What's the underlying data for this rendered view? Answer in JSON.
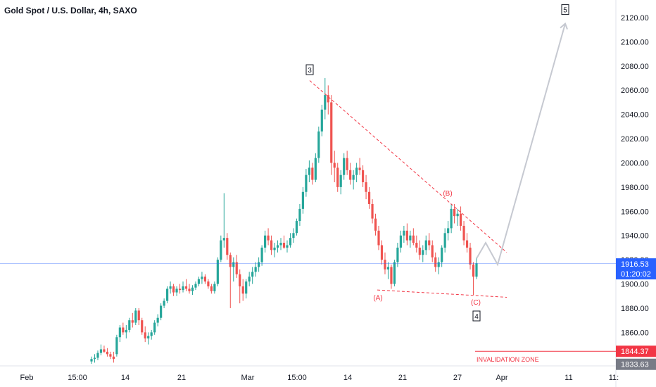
{
  "title": "Gold Spot / U.S. Dollar, 4h, SAXO",
  "price_label": {
    "price": "1916.53",
    "countdown": "01:20:02",
    "color": "#2962ff"
  },
  "invalidation": {
    "label": "INVALIDATION ZONE",
    "price": "1844.37",
    "color": "#f23645"
  },
  "low_marker": "1833.63",
  "colors": {
    "up": "#26a69a",
    "down": "#ef5350",
    "trend": "#f23645",
    "projection": "#c6c9d1",
    "price_line": "#2962ff"
  },
  "chart_data": {
    "type": "candlestick",
    "title": "Gold Spot / U.S. Dollar, 4h, SAXO",
    "ylim": [
      1826,
      2132
    ],
    "y_ticks": [
      1860,
      1880,
      1900,
      1920,
      1940,
      1960,
      1980,
      2000,
      2020,
      2040,
      2060,
      2080,
      2100,
      2120
    ],
    "y_tick_labels": [
      "1860.00",
      "1880.00",
      "1900.00",
      "1920.00",
      "1940.00",
      "1960.00",
      "1980.00",
      "2000.00",
      "2020.00",
      "2040.00",
      "2060.00",
      "2080.00",
      "2100.00",
      "2120.00"
    ],
    "x_tick_labels": [
      "Feb",
      "15:00",
      "14",
      "21",
      "Mar",
      "15:00",
      "14",
      "21",
      "27",
      "Apr",
      "11",
      "11:"
    ],
    "waves": [
      {
        "label": "3",
        "boxed": true,
        "value": 2070
      },
      {
        "label": "(A)",
        "boxed": false,
        "value": 1896
      },
      {
        "label": "(B)",
        "boxed": false,
        "value": 1966
      },
      {
        "label": "(C)",
        "boxed": false,
        "value": 1891
      },
      {
        "label": "4",
        "boxed": true,
        "value": 1891
      },
      {
        "label": "5",
        "boxed": true,
        "value": 2115
      }
    ],
    "trendlines": [
      {
        "name": "upper",
        "from": 2068,
        "to": 1926
      },
      {
        "name": "lower",
        "from": 1895,
        "to": 1889
      }
    ],
    "projection": [
      1921,
      1934,
      1916,
      2115
    ],
    "candles": [
      [
        1836,
        1840,
        1834,
        1838
      ],
      [
        1838,
        1842,
        1835,
        1839
      ],
      [
        1839,
        1845,
        1837,
        1843
      ],
      [
        1843,
        1850,
        1841,
        1846
      ],
      [
        1846,
        1849,
        1843,
        1844
      ],
      [
        1844,
        1847,
        1840,
        1842
      ],
      [
        1842,
        1844,
        1838,
        1840
      ],
      [
        1840,
        1844,
        1835,
        1838
      ],
      [
        1842,
        1858,
        1840,
        1856
      ],
      [
        1856,
        1866,
        1852,
        1864
      ],
      [
        1864,
        1868,
        1858,
        1860
      ],
      [
        1860,
        1866,
        1855,
        1862
      ],
      [
        1862,
        1872,
        1860,
        1870
      ],
      [
        1870,
        1876,
        1864,
        1868
      ],
      [
        1868,
        1880,
        1866,
        1878
      ],
      [
        1878,
        1880,
        1866,
        1870
      ],
      [
        1870,
        1872,
        1858,
        1860
      ],
      [
        1860,
        1865,
        1852,
        1855
      ],
      [
        1855,
        1860,
        1850,
        1857
      ],
      [
        1857,
        1862,
        1854,
        1860
      ],
      [
        1860,
        1870,
        1858,
        1868
      ],
      [
        1868,
        1875,
        1865,
        1872
      ],
      [
        1872,
        1884,
        1870,
        1882
      ],
      [
        1882,
        1888,
        1880,
        1886
      ],
      [
        1886,
        1898,
        1884,
        1896
      ],
      [
        1896,
        1902,
        1892,
        1898
      ],
      [
        1898,
        1900,
        1890,
        1893
      ],
      [
        1893,
        1898,
        1890,
        1896
      ],
      [
        1896,
        1900,
        1892,
        1895
      ],
      [
        1895,
        1902,
        1893,
        1898
      ],
      [
        1898,
        1904,
        1894,
        1896
      ],
      [
        1896,
        1900,
        1892,
        1894
      ],
      [
        1894,
        1899,
        1891,
        1897
      ],
      [
        1897,
        1902,
        1895,
        1900
      ],
      [
        1900,
        1906,
        1898,
        1904
      ],
      [
        1904,
        1910,
        1900,
        1906
      ],
      [
        1906,
        1908,
        1900,
        1902
      ],
      [
        1902,
        1904,
        1896,
        1898
      ],
      [
        1898,
        1900,
        1892,
        1894
      ],
      [
        1894,
        1902,
        1892,
        1900
      ],
      [
        1900,
        1922,
        1898,
        1920
      ],
      [
        1920,
        1940,
        1918,
        1936
      ],
      [
        1936,
        1975,
        1930,
        1938
      ],
      [
        1938,
        1942,
        1920,
        1924
      ],
      [
        1924,
        1926,
        1880,
        1914
      ],
      [
        1914,
        1922,
        1902,
        1918
      ],
      [
        1918,
        1924,
        1905,
        1908
      ],
      [
        1908,
        1912,
        1884,
        1898
      ],
      [
        1898,
        1904,
        1886,
        1892
      ],
      [
        1892,
        1904,
        1888,
        1902
      ],
      [
        1902,
        1910,
        1898,
        1906
      ],
      [
        1906,
        1914,
        1900,
        1910
      ],
      [
        1910,
        1918,
        1906,
        1914
      ],
      [
        1914,
        1922,
        1910,
        1918
      ],
      [
        1918,
        1932,
        1915,
        1930
      ],
      [
        1930,
        1944,
        1926,
        1940
      ],
      [
        1940,
        1946,
        1932,
        1936
      ],
      [
        1936,
        1940,
        1924,
        1928
      ],
      [
        1928,
        1934,
        1922,
        1930
      ],
      [
        1930,
        1936,
        1926,
        1932
      ],
      [
        1932,
        1938,
        1928,
        1934
      ],
      [
        1934,
        1940,
        1929,
        1930
      ],
      [
        1930,
        1936,
        1926,
        1932
      ],
      [
        1932,
        1942,
        1930,
        1938
      ],
      [
        1938,
        1946,
        1934,
        1942
      ],
      [
        1942,
        1954,
        1940,
        1952
      ],
      [
        1952,
        1966,
        1948,
        1962
      ],
      [
        1962,
        1980,
        1958,
        1976
      ],
      [
        1976,
        1995,
        1972,
        1990
      ],
      [
        1990,
        2002,
        1984,
        1996
      ],
      [
        1996,
        2000,
        1982,
        1986
      ],
      [
        1986,
        2008,
        1984,
        2004
      ],
      [
        2004,
        2030,
        2000,
        2026
      ],
      [
        2026,
        2048,
        2022,
        2044
      ],
      [
        2044,
        2070,
        2036,
        2056
      ],
      [
        2056,
        2064,
        2040,
        2050
      ],
      [
        2050,
        2056,
        1990,
        2000
      ],
      [
        2000,
        2010,
        1984,
        1996
      ],
      [
        1996,
        2000,
        1976,
        1980
      ],
      [
        1980,
        1994,
        1974,
        1990
      ],
      [
        1990,
        2008,
        1986,
        2004
      ],
      [
        2004,
        2010,
        1990,
        1994
      ],
      [
        1994,
        2000,
        1982,
        1986
      ],
      [
        1986,
        1994,
        1978,
        1990
      ],
      [
        1990,
        2000,
        1984,
        1996
      ],
      [
        1996,
        2004,
        1990,
        1994
      ],
      [
        1994,
        1998,
        1980,
        1984
      ],
      [
        1984,
        1990,
        1970,
        1976
      ],
      [
        1976,
        1980,
        1962,
        1966
      ],
      [
        1966,
        1970,
        1950,
        1954
      ],
      [
        1954,
        1958,
        1940,
        1944
      ],
      [
        1944,
        1948,
        1928,
        1932
      ],
      [
        1932,
        1936,
        1916,
        1920
      ],
      [
        1920,
        1926,
        1908,
        1912
      ],
      [
        1912,
        1918,
        1904,
        1914
      ],
      [
        1914,
        1916,
        1896,
        1900
      ],
      [
        1900,
        1920,
        1898,
        1918
      ],
      [
        1918,
        1934,
        1914,
        1930
      ],
      [
        1930,
        1944,
        1926,
        1940
      ],
      [
        1940,
        1948,
        1934,
        1944
      ],
      [
        1944,
        1950,
        1932,
        1936
      ],
      [
        1936,
        1944,
        1930,
        1940
      ],
      [
        1940,
        1946,
        1932,
        1934
      ],
      [
        1934,
        1940,
        1926,
        1930
      ],
      [
        1930,
        1936,
        1920,
        1924
      ],
      [
        1924,
        1932,
        1918,
        1928
      ],
      [
        1928,
        1940,
        1924,
        1936
      ],
      [
        1936,
        1942,
        1928,
        1932
      ],
      [
        1932,
        1936,
        1918,
        1922
      ],
      [
        1922,
        1926,
        1910,
        1914
      ],
      [
        1914,
        1922,
        1908,
        1918
      ],
      [
        1918,
        1932,
        1914,
        1930
      ],
      [
        1930,
        1946,
        1926,
        1942
      ],
      [
        1942,
        1952,
        1936,
        1946
      ],
      [
        1946,
        1966,
        1942,
        1962
      ],
      [
        1962,
        1966,
        1950,
        1956
      ],
      [
        1956,
        1962,
        1948,
        1958
      ],
      [
        1958,
        1964,
        1944,
        1948
      ],
      [
        1948,
        1952,
        1932,
        1936
      ],
      [
        1936,
        1942,
        1926,
        1930
      ],
      [
        1930,
        1934,
        1912,
        1916
      ],
      [
        1916,
        1918,
        1891,
        1906
      ],
      [
        1906,
        1922,
        1904,
        1917
      ]
    ]
  }
}
